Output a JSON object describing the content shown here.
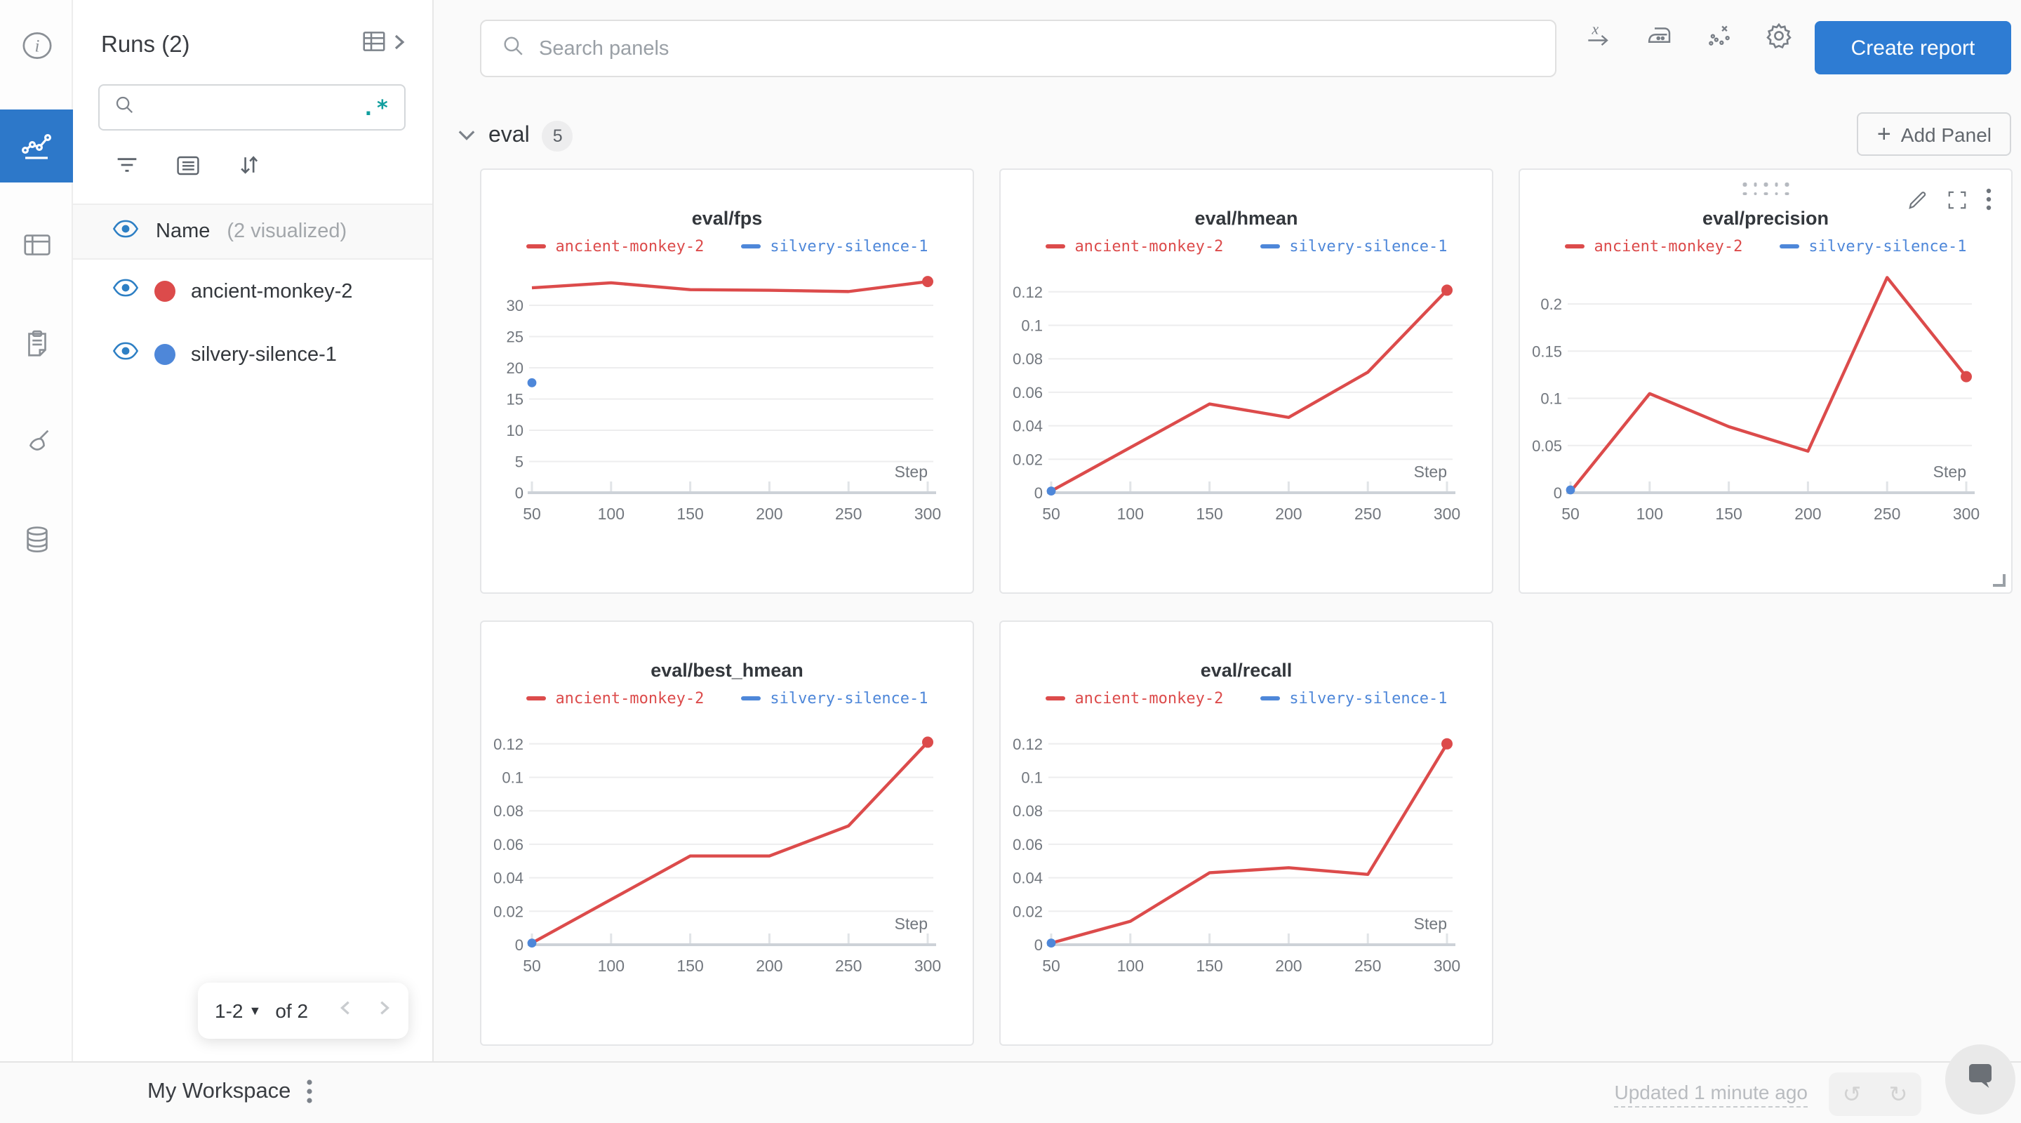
{
  "rail": {
    "icons": [
      "info",
      "line-chart",
      "table",
      "clipboard",
      "broom",
      "database"
    ],
    "selected": "line-chart"
  },
  "runs_panel": {
    "title": "Runs (2)",
    "search": {
      "value": "",
      "placeholder": "",
      "regex_label": ".*"
    },
    "header_row": {
      "label": "Name",
      "suffix": "(2 visualized)"
    },
    "runs": [
      {
        "name": "ancient-monkey-2",
        "color": "#dc4b4b"
      },
      {
        "name": "silvery-silence-1",
        "color": "#4e87d9"
      }
    ],
    "pagination": {
      "range_label": "1-2",
      "of_label": "of 2"
    }
  },
  "toolbar": {
    "search_placeholder": "Search panels",
    "icons": [
      "x-axis",
      "smoothing-iron",
      "outliers",
      "settings-gear"
    ],
    "create_report_label": "Create report"
  },
  "section": {
    "title": "eval",
    "count": "5",
    "add_panel_label": "Add Panel"
  },
  "workspace_bar": {
    "title": "My Workspace",
    "updated_label": "Updated 1 minute ago"
  },
  "colors": {
    "accent_blue": "#2e7cd3",
    "rail_selected_blue": "#2d78c9",
    "run_red": "#dc4b4b",
    "run_blue": "#4e87d9",
    "regex_teal": "#109e9e"
  },
  "panels": [
    {
      "hovered": false,
      "chart_data": {
        "type": "line",
        "title": "eval/fps",
        "xlabel": "Step",
        "xticks": [
          50,
          100,
          150,
          200,
          250,
          300
        ],
        "ymax": 35.5,
        "yticks": [
          0,
          5,
          10,
          15,
          20,
          25,
          30
        ],
        "ytick_labels": [
          "0",
          "5",
          "10",
          "15",
          "20",
          "25",
          "30"
        ],
        "series": [
          {
            "name": "ancient-monkey-2",
            "color": "#dc4b4b",
            "x": [
              50,
              100,
              150,
              200,
              250,
              300
            ],
            "y": [
              32.8,
              33.6,
              32.5,
              32.4,
              32.2,
              33.8
            ]
          },
          {
            "name": "silvery-silence-1",
            "color": "#4e87d9",
            "x": [
              50
            ],
            "y": [
              17.6
            ]
          }
        ]
      }
    },
    {
      "hovered": false,
      "chart_data": {
        "type": "line",
        "title": "eval/hmean",
        "xlabel": "Step",
        "xticks": [
          50,
          100,
          150,
          200,
          250,
          300
        ],
        "ymax": 0.1325,
        "yticks": [
          0,
          0.02,
          0.04,
          0.06,
          0.08,
          0.1,
          0.12
        ],
        "ytick_labels": [
          "0",
          "0.02",
          "0.04",
          "0.06",
          "0.08",
          "0.1",
          "0.12"
        ],
        "series": [
          {
            "name": "ancient-monkey-2",
            "color": "#dc4b4b",
            "x": [
              50,
              100,
              150,
              200,
              250,
              300
            ],
            "y": [
              0.001,
              0.027,
              0.053,
              0.045,
              0.072,
              0.121
            ]
          },
          {
            "name": "silvery-silence-1",
            "color": "#4e87d9",
            "x": [
              50
            ],
            "y": [
              0.001
            ]
          }
        ]
      }
    },
    {
      "hovered": true,
      "chart_data": {
        "type": "line",
        "title": "eval/precision",
        "xlabel": "Step",
        "xticks": [
          50,
          100,
          150,
          200,
          250,
          300
        ],
        "ymax": 0.235,
        "yticks": [
          0,
          0.05,
          0.1,
          0.15,
          0.2
        ],
        "ytick_labels": [
          "0",
          "0.05",
          "0.1",
          "0.15",
          "0.2"
        ],
        "series": [
          {
            "name": "ancient-monkey-2",
            "color": "#dc4b4b",
            "x": [
              50,
              100,
              150,
              200,
              250,
              300
            ],
            "y": [
              0.001,
              0.105,
              0.07,
              0.044,
              0.228,
              0.123
            ]
          },
          {
            "name": "silvery-silence-1",
            "color": "#4e87d9",
            "x": [
              50
            ],
            "y": [
              0.003
            ]
          }
        ]
      }
    },
    {
      "hovered": false,
      "chart_data": {
        "type": "line",
        "title": "eval/best_hmean",
        "xlabel": "Step",
        "xticks": [
          50,
          100,
          150,
          200,
          250,
          300
        ],
        "ymax": 0.1325,
        "yticks": [
          0,
          0.02,
          0.04,
          0.06,
          0.08,
          0.1,
          0.12
        ],
        "ytick_labels": [
          "0",
          "0.02",
          "0.04",
          "0.06",
          "0.08",
          "0.1",
          "0.12"
        ],
        "series": [
          {
            "name": "ancient-monkey-2",
            "color": "#dc4b4b",
            "x": [
              50,
              100,
              150,
              200,
              250,
              300
            ],
            "y": [
              0.001,
              0.027,
              0.053,
              0.053,
              0.071,
              0.121
            ]
          },
          {
            "name": "silvery-silence-1",
            "color": "#4e87d9",
            "x": [
              50
            ],
            "y": [
              0.001
            ]
          }
        ]
      }
    },
    {
      "hovered": false,
      "chart_data": {
        "type": "line",
        "title": "eval/recall",
        "xlabel": "Step",
        "xticks": [
          50,
          100,
          150,
          200,
          250,
          300
        ],
        "ymax": 0.1325,
        "yticks": [
          0,
          0.02,
          0.04,
          0.06,
          0.08,
          0.1,
          0.12
        ],
        "ytick_labels": [
          "0",
          "0.02",
          "0.04",
          "0.06",
          "0.08",
          "0.1",
          "0.12"
        ],
        "series": [
          {
            "name": "ancient-monkey-2",
            "color": "#dc4b4b",
            "x": [
              50,
              100,
              150,
              200,
              250,
              300
            ],
            "y": [
              0.001,
              0.014,
              0.043,
              0.046,
              0.042,
              0.12
            ]
          },
          {
            "name": "silvery-silence-1",
            "color": "#4e87d9",
            "x": [
              50
            ],
            "y": [
              0.001
            ]
          }
        ]
      }
    }
  ]
}
